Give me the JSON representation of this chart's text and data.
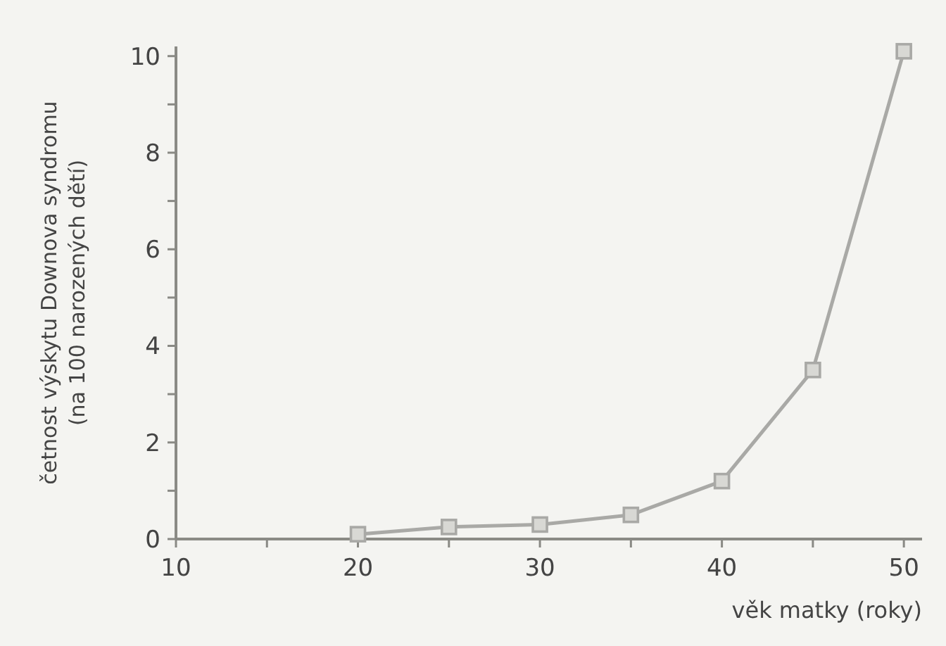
{
  "chart_data": {
    "type": "line",
    "xlabel": "věk matky (roky)",
    "ylabel": "četnost výskytu Downova syndromu\n(na 100 narozených dětí)",
    "x": [
      20,
      25,
      30,
      35,
      40,
      45,
      50
    ],
    "series": [
      {
        "color": "#a9a9a6",
        "values": [
          0.1,
          0.25,
          0.3,
          0.5,
          1.2,
          3.5,
          10.1
        ]
      }
    ],
    "xlim": [
      10,
      51
    ],
    "ylim": [
      0,
      10.2
    ],
    "xticks": [
      10,
      {
        "value": 15,
        "label": null
      },
      20,
      {
        "value": 25,
        "label": null
      },
      30,
      {
        "value": 35,
        "label": null
      },
      40,
      {
        "value": 45,
        "label": null
      },
      50
    ],
    "yticks": [
      0,
      {
        "value": 1,
        "label": null
      },
      2,
      {
        "value": 3,
        "label": null
      },
      4,
      {
        "value": 5,
        "label": null
      },
      6,
      {
        "value": 7,
        "label": null
      },
      8,
      {
        "value": 9,
        "label": null
      },
      10
    ],
    "marker": "square",
    "line_style": "solid"
  }
}
